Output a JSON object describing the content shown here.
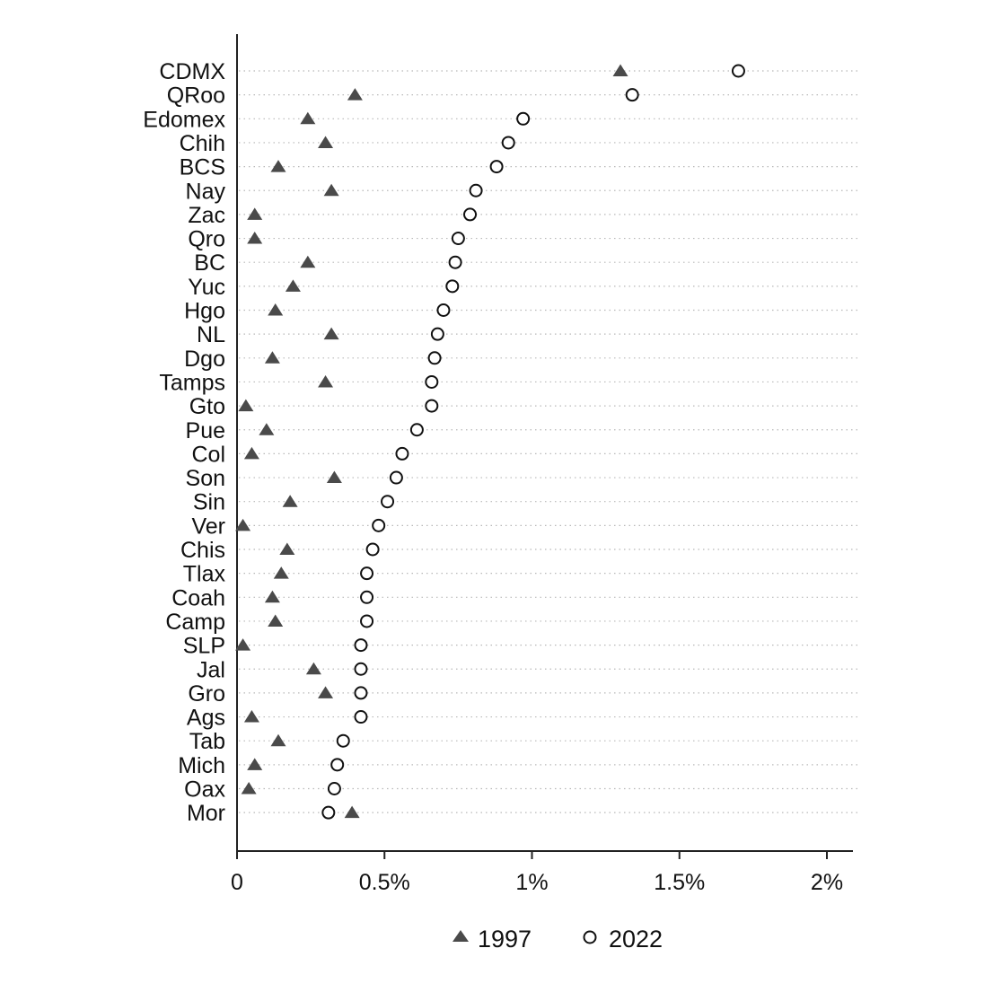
{
  "chart_data": {
    "type": "scatter",
    "orientation": "horizontal-dot-plot",
    "title": "",
    "xlabel": "",
    "ylabel": "",
    "xlim": [
      0,
      0.02
    ],
    "xticks": [
      0,
      0.005,
      0.01,
      0.015,
      0.02
    ],
    "xtick_labels": [
      "0",
      "0.5%",
      "1%",
      "1.5%",
      "2%"
    ],
    "grid": "horizontal dotted guide lines per category",
    "legend": {
      "position": "bottom-center"
    },
    "categories": [
      "CDMX",
      "QRoo",
      "Edomex",
      "Chih",
      "BCS",
      "Nay",
      "Zac",
      "Qro",
      "BC",
      "Yuc",
      "Hgo",
      "NL",
      "Dgo",
      "Tamps",
      "Gto",
      "Pue",
      "Col",
      "Son",
      "Sin",
      "Ver",
      "Chis",
      "Tlax",
      "Coah",
      "Camp",
      "SLP",
      "Jal",
      "Gro",
      "Ags",
      "Tab",
      "Mich",
      "Oax",
      "Mor"
    ],
    "series": [
      {
        "name": "1997",
        "marker": "filled-triangle",
        "color": "#4a4a4a",
        "values": [
          0.013,
          0.004,
          0.0024,
          0.003,
          0.0014,
          0.0032,
          0.0006,
          0.0006,
          0.0024,
          0.0019,
          0.0013,
          0.0032,
          0.0012,
          0.003,
          0.0003,
          0.001,
          0.0005,
          0.0033,
          0.0018,
          0.0002,
          0.0017,
          0.0015,
          0.0012,
          0.0013,
          0.0002,
          0.0026,
          0.003,
          0.0005,
          0.0014,
          0.0006,
          0.0004,
          0.0039
        ]
      },
      {
        "name": "2022",
        "marker": "hollow-circle",
        "color": "#111111",
        "values": [
          0.017,
          0.0134,
          0.0097,
          0.0092,
          0.0088,
          0.0081,
          0.0079,
          0.0075,
          0.0074,
          0.0073,
          0.007,
          0.0068,
          0.0067,
          0.0066,
          0.0066,
          0.0061,
          0.0056,
          0.0054,
          0.0051,
          0.0048,
          0.0046,
          0.0044,
          0.0044,
          0.0044,
          0.0042,
          0.0042,
          0.0042,
          0.0042,
          0.0036,
          0.0034,
          0.0033,
          0.0031
        ]
      }
    ]
  }
}
